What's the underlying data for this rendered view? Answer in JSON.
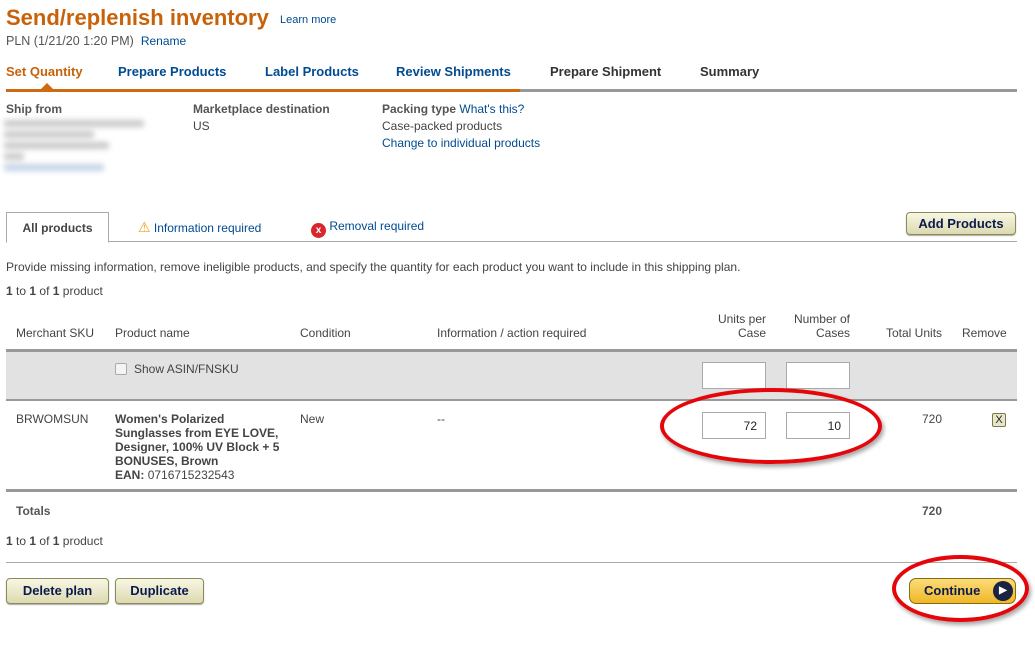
{
  "header": {
    "title": "Send/replenish inventory",
    "learn_more": "Learn more",
    "plan": "PLN (1/21/20 1:20 PM)",
    "rename": "Rename"
  },
  "steps": [
    {
      "label": "Set Quantity"
    },
    {
      "label": "Prepare Products"
    },
    {
      "label": "Label Products"
    },
    {
      "label": "Review Shipments"
    },
    {
      "label": "Prepare Shipment"
    },
    {
      "label": "Summary"
    }
  ],
  "info": {
    "ship_from_label": "Ship from",
    "marketplace_label": "Marketplace destination",
    "marketplace_value": "US",
    "packing_label": "Packing type",
    "whats_this": "What's this?",
    "packing_value": "Case-packed products",
    "change_link": "Change to individual products"
  },
  "filter_tabs": [
    {
      "label": "All products"
    },
    {
      "label": "Information required",
      "icon": "warning-icon"
    },
    {
      "label": "Removal required",
      "icon": "error-icon"
    }
  ],
  "add_products": "Add Products",
  "instructions": "Provide missing information, remove ineligible products, and specify the quantity for each product you want to include in this shipping plan.",
  "pagination": {
    "from": "1",
    "to_word": " to ",
    "to": "1",
    "of_word": " of ",
    "total": "1",
    "suffix": " product"
  },
  "table": {
    "headers": {
      "sku": "Merchant SKU",
      "name": "Product name",
      "condition": "Condition",
      "info": "Information / action required",
      "units_per_case_1": "Units per",
      "units_per_case_2": "Case",
      "cases_1": "Number of",
      "cases_2": "Cases",
      "total": "Total Units",
      "remove": "Remove"
    },
    "show_asin": "Show ASIN/FNSKU",
    "rows": [
      {
        "sku": "BRWOMSUN",
        "name": "Women's Polarized Sunglasses from EYE LOVE, Designer, 100% UV Block + 5 BONUSES, Brown",
        "ean_label": "EAN:",
        "ean": "0716715232543",
        "condition": "New",
        "info": "--",
        "units_per_case": "72",
        "cases": "10",
        "total": "720",
        "remove": "X"
      }
    ],
    "totals_label": "Totals",
    "totals_value": "720"
  },
  "footer": {
    "delete": "Delete plan",
    "duplicate": "Duplicate",
    "continue": "Continue"
  },
  "colors": {
    "accent": "#c8620a",
    "link": "#004b91",
    "highlight": "#e5060c"
  }
}
